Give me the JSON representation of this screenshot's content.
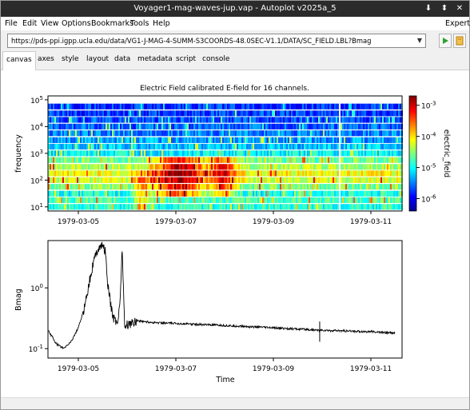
{
  "window": {
    "title": "Voyager1-mag-waves-jup.vap - Autoplot v2025a_5",
    "buttons": {
      "download": "⬇",
      "pin": "⬍",
      "close": "✕"
    }
  },
  "menu": {
    "items": [
      "File",
      "Edit",
      "View",
      "Options",
      "Bookmarks",
      "Tools",
      "Help"
    ],
    "expert": "Expert"
  },
  "url_bar": {
    "value": "https://pds-ppi.igpp.ucla.edu/data/VG1-J-MAG-4-SUMM-S3COORDS-48.0SEC-V1.1/DATA/SC_FIELD.LBL?Bmag",
    "go_icon": "play-icon",
    "bookmark_icon": "bookmark-icon"
  },
  "tabs": [
    "canvas",
    "axes",
    "style",
    "layout",
    "data",
    "metadata",
    "script",
    "console"
  ],
  "active_tab": "canvas",
  "colors": {
    "titlebar": "#2b2b2b",
    "go_green": "#2ea12e",
    "bookmark_orange": "#e8a020"
  },
  "chart_data": [
    {
      "type": "heatmap",
      "title": "Electric Field calibrated E-field for 16 channels.",
      "xlabel": "",
      "ylabel": "frequency",
      "x_ticks": [
        "1979-03-05",
        "1979-03-07",
        "1979-03-09",
        "1979-03-11"
      ],
      "y_scale": "log",
      "y_ticks": [
        "10^1",
        "10^2",
        "10^3",
        "10^4",
        "10^5"
      ],
      "ylim": [
        7,
        140000
      ],
      "colorbar": {
        "label": "electric_field",
        "scale": "log",
        "ticks": [
          "10^-3",
          "10^-4",
          "10^-5",
          "10^-6"
        ],
        "range": [
          4e-07,
          0.002
        ]
      },
      "channels": [
        {
          "freq": 10,
          "level": 0.42
        },
        {
          "freq": 17.8,
          "level": 0.45
        },
        {
          "freq": 31.1,
          "level": 0.4
        },
        {
          "freq": 56.2,
          "level": 0.5
        },
        {
          "freq": 100,
          "level": 0.58
        },
        {
          "freq": 178,
          "level": 0.62
        },
        {
          "freq": 311,
          "level": 0.55
        },
        {
          "freq": 562,
          "level": 0.48
        },
        {
          "freq": 1000,
          "level": 0.38
        },
        {
          "freq": 1780,
          "level": 0.32
        },
        {
          "freq": 3110,
          "level": 0.28
        },
        {
          "freq": 5620,
          "level": 0.25
        },
        {
          "freq": 10000,
          "level": 0.22
        },
        {
          "freq": 17800,
          "level": 0.2
        },
        {
          "freq": 31100,
          "level": 0.18
        },
        {
          "freq": 56200,
          "level": 0.17
        }
      ],
      "time_range": [
        "1979-03-04 06:00",
        "1979-03-11 18:00"
      ]
    },
    {
      "type": "line",
      "title": "",
      "xlabel": "Time",
      "ylabel": "Bmag",
      "y_scale": "log",
      "ylim": [
        0.07,
        6
      ],
      "y_ticks": [
        "10^0",
        "10^-1"
      ],
      "x_ticks": [
        "1979-03-05",
        "1979-03-07",
        "1979-03-09",
        "1979-03-11"
      ],
      "x_days": [
        -0.75,
        -0.6,
        -0.45,
        -0.3,
        -0.15,
        0,
        0.1,
        0.2,
        0.3,
        0.4,
        0.5,
        0.55,
        0.6,
        0.7,
        0.75,
        0.8,
        0.85,
        0.9,
        0.95,
        1.0,
        1.2,
        1.5,
        2.0,
        3.0,
        4.0,
        5.0,
        6.0,
        6.5
      ],
      "values": [
        0.2,
        0.19,
        0.12,
        0.1,
        0.13,
        0.22,
        0.4,
        1.0,
        2.5,
        4.5,
        5.0,
        4.2,
        1.2,
        0.35,
        0.3,
        0.27,
        0.5,
        4.8,
        0.22,
        0.25,
        0.29,
        0.27,
        0.26,
        0.24,
        0.22,
        0.2,
        0.19,
        0.18
      ]
    }
  ]
}
